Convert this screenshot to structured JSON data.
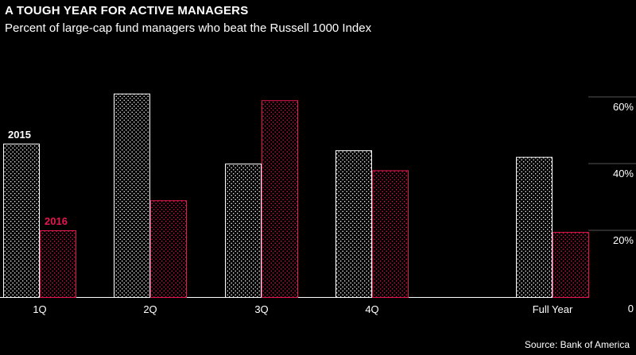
{
  "header": {
    "title": "A TOUGH YEAR FOR ACTIVE MANAGERS",
    "subtitle": "Percent of large-cap fund managers who beat the Russell 1000 Index"
  },
  "footer": {
    "source": "Source: Bank of America"
  },
  "colors": {
    "background": "#000000",
    "series_2015": "#ffffff",
    "series_2016": "#e8174f",
    "text": "#ffffff"
  },
  "chart_data": {
    "type": "bar",
    "title": "A TOUGH YEAR FOR ACTIVE MANAGERS",
    "subtitle": "Percent of large-cap fund managers who beat the Russell 1000 Index",
    "categories": [
      "1Q",
      "2Q",
      "3Q",
      "4Q",
      "Full Year"
    ],
    "series": [
      {
        "name": "2015",
        "values": [
          46,
          61,
          40,
          44,
          42
        ]
      },
      {
        "name": "2016",
        "values": [
          20,
          29,
          59,
          38,
          19.5
        ]
      }
    ],
    "ylim": [
      0,
      65
    ],
    "y_ticks": [
      0,
      20,
      40,
      60
    ],
    "y_tick_labels": [
      "0",
      "20%",
      "40%",
      "60%"
    ],
    "y_axis_position": "right",
    "grid": true,
    "legend": "inline-labels"
  }
}
